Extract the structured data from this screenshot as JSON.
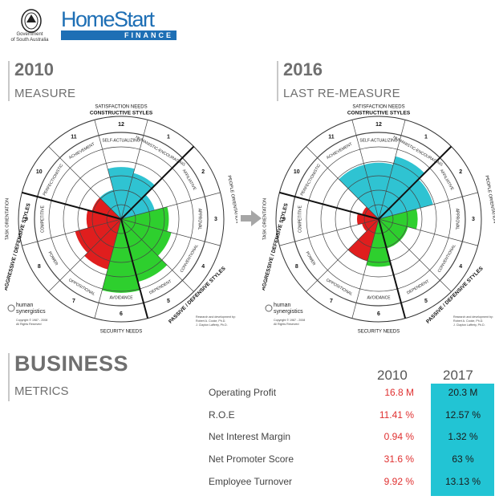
{
  "header": {
    "gov_text_line1": "Government",
    "gov_text_line2": "of South Australia",
    "logo_word": "HomeStart",
    "logo_sub": "FINANCE"
  },
  "left_panel": {
    "year": "2010",
    "subtitle": "MEASURE"
  },
  "right_panel": {
    "year": "2016",
    "subtitle": "LAST RE-MEASURE"
  },
  "circumplex": {
    "top_label": "SATISFACTION NEEDS",
    "constructive": "CONSTRUCTIVE STYLES",
    "passive": "PASSIVE / DEFENSIVE STYLES",
    "aggressive": "AGGRESSIVE / DEFENSIVE STYLES",
    "task": "TASK ORIENTATION",
    "people": "PEOPLE ORIENTATION",
    "security": "SECURITY NEEDS",
    "segments": [
      "SELF-ACTUALIZING",
      "HUMANISTIC-ENCOURAGING",
      "AFFILIATIVE",
      "APPROVAL",
      "CONVENTIONAL",
      "DEPENDENT",
      "AVOIDANCE",
      "OPPOSITIONAL",
      "POWER",
      "COMPETITIVE",
      "PERFECTIONISTIC",
      "ACHIEVEMENT"
    ],
    "numbers": [
      "12",
      "1",
      "2",
      "3",
      "4",
      "5",
      "6",
      "7",
      "8",
      "9",
      "10",
      "11"
    ],
    "brand_line1": "human",
    "brand_line2": "synergistics",
    "copyright_line1": "Copyright © 1987 - 2008",
    "copyright_line2": "All Rights Reserved",
    "credits_line1": "Research and development by:",
    "credits_line2": "Robert A. Cooke, Ph.D.",
    "credits_line3": "J. Clayton Lafferty, Ph.D.",
    "colors": {
      "constructive": "#2fc3d2",
      "passive": "#2ecf2e",
      "aggressive": "#e01e1e"
    },
    "levels_2010": [
      0.6,
      0.55,
      0.4,
      0.55,
      0.6,
      0.75,
      0.85,
      0.6,
      0.55,
      0.4,
      0.35,
      0.35
    ],
    "levels_2016": [
      0.65,
      0.75,
      0.65,
      0.45,
      0.35,
      0.35,
      0.55,
      0.5,
      0.2,
      0.25,
      0.2,
      0.65
    ]
  },
  "business": {
    "title": "BUSINESS",
    "subtitle": "METRICS",
    "col_2010": "2010",
    "col_2017": "2017",
    "rows": [
      {
        "label": "Operating Profit",
        "v2010": "16.8 M",
        "v2017": "20.3 M"
      },
      {
        "label": "R.O.E",
        "v2010": "11.41 %",
        "v2017": "12.57 %"
      },
      {
        "label": "Net Interest Margin",
        "v2010": "0.94 %",
        "v2017": "1.32 %"
      },
      {
        "label": "Net Promoter Score",
        "v2010": "31.6 %",
        "v2017": "63 %"
      },
      {
        "label": "Employee Turnover",
        "v2010": "9.92 %",
        "v2017": "13.13 %"
      }
    ]
  }
}
